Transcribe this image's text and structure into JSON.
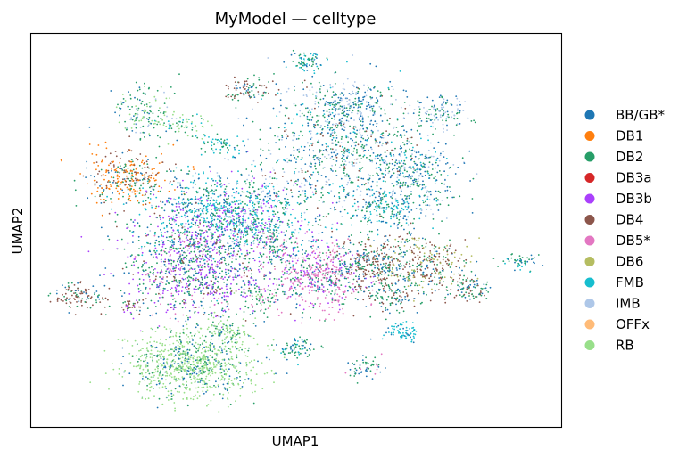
{
  "chart_data": {
    "type": "scatter",
    "title": "MyModel — celltype",
    "xlabel": "UMAP1",
    "ylabel": "UMAP2",
    "xlim": [
      0,
      100
    ],
    "ylim": [
      0,
      100
    ],
    "grid": false,
    "ticks": false,
    "legend_position": "right, outside plot",
    "series": [
      {
        "name": "BB/GB*",
        "color": "#1f77b4"
      },
      {
        "name": "DB1",
        "color": "#ff7f0e"
      },
      {
        "name": "DB2",
        "color": "#279e68"
      },
      {
        "name": "DB3a",
        "color": "#d62728"
      },
      {
        "name": "DB3b",
        "color": "#aa40fc"
      },
      {
        "name": "DB4",
        "color": "#8c564b"
      },
      {
        "name": "DB5*",
        "color": "#e377c2"
      },
      {
        "name": "DB6",
        "color": "#b5bd61"
      },
      {
        "name": "FMB",
        "color": "#17becf"
      },
      {
        "name": "IMB",
        "color": "#aec7e8"
      },
      {
        "name": "OFFx",
        "color": "#ffbb78"
      },
      {
        "name": "RB",
        "color": "#98df8a"
      }
    ],
    "clusters": [
      {
        "x": 52,
        "y": 93,
        "sx": 1.6,
        "sy": 1.4,
        "n": 70,
        "mix": {
          "DB2": 2,
          "BB/GB*": 1,
          "FMB": 1
        }
      },
      {
        "x": 41,
        "y": 86,
        "sx": 2.2,
        "sy": 1.6,
        "n": 90,
        "mix": {
          "DB4": 3,
          "DB2": 2,
          "BB/GB*": 1
        }
      },
      {
        "x": 21,
        "y": 80,
        "sx": 2.8,
        "sy": 3.5,
        "n": 160,
        "mix": {
          "DB2": 2,
          "RB": 2,
          "BB/GB*": 1,
          "IMB": 1
        }
      },
      {
        "x": 29,
        "y": 77,
        "sx": 2.5,
        "sy": 1.5,
        "n": 60,
        "mix": {
          "DB2": 2,
          "RB": 2,
          "FMB": 1
        }
      },
      {
        "x": 18,
        "y": 63,
        "sx": 4.0,
        "sy": 3.5,
        "n": 320,
        "mix": {
          "DB1": 5,
          "DB4": 3,
          "DB2": 2,
          "BB/GB*": 1
        }
      },
      {
        "x": 36,
        "y": 72,
        "sx": 2.0,
        "sy": 1.5,
        "n": 50,
        "mix": {
          "DB2": 2,
          "FMB": 2,
          "BB/GB*": 1
        }
      },
      {
        "x": 37,
        "y": 54,
        "sx": 8.0,
        "sy": 5.5,
        "n": 1200,
        "mix": {
          "FMB": 4,
          "DB2": 3,
          "BB/GB*": 2,
          "DB3b": 2,
          "IMB": 1
        }
      },
      {
        "x": 31,
        "y": 40,
        "sx": 7.0,
        "sy": 6.0,
        "n": 1000,
        "mix": {
          "DB3b": 4,
          "DB2": 3,
          "BB/GB*": 2,
          "DB4": 1,
          "DB5*": 1
        }
      },
      {
        "x": 59,
        "y": 70,
        "sx": 8.0,
        "sy": 8.0,
        "n": 850,
        "mix": {
          "BB/GB*": 3,
          "DB2": 3,
          "FMB": 1,
          "IMB": 2,
          "DB4": 1
        }
      },
      {
        "x": 60,
        "y": 82,
        "sx": 4.0,
        "sy": 3.0,
        "n": 250,
        "mix": {
          "BB/GB*": 2,
          "DB2": 2,
          "IMB": 2
        }
      },
      {
        "x": 72,
        "y": 63,
        "sx": 4.0,
        "sy": 6.0,
        "n": 350,
        "mix": {
          "BB/GB*": 3,
          "DB2": 2,
          "FMB": 1,
          "IMB": 1
        }
      },
      {
        "x": 67,
        "y": 55,
        "sx": 3.0,
        "sy": 2.0,
        "n": 120,
        "mix": {
          "FMB": 2,
          "DB2": 2,
          "BB/GB*": 1
        }
      },
      {
        "x": 54,
        "y": 38,
        "sx": 4.5,
        "sy": 4.5,
        "n": 550,
        "mix": {
          "DB5*": 5,
          "DB3b": 2,
          "DB2": 2,
          "BB/GB*": 1
        }
      },
      {
        "x": 64,
        "y": 41,
        "sx": 3.5,
        "sy": 3.5,
        "n": 300,
        "mix": {
          "DB4": 3,
          "DB2": 2,
          "BB/GB*": 2
        }
      },
      {
        "x": 74,
        "y": 41,
        "sx": 4.5,
        "sy": 3.5,
        "n": 350,
        "mix": {
          "DB4": 3,
          "DB6": 2,
          "DB2": 2,
          "BB/GB*": 1
        }
      },
      {
        "x": 68,
        "y": 33,
        "sx": 2.5,
        "sy": 2.0,
        "n": 100,
        "mix": {
          "DB2": 2,
          "DB4": 1,
          "BB/GB*": 1
        }
      },
      {
        "x": 70,
        "y": 24,
        "sx": 1.8,
        "sy": 1.2,
        "n": 70,
        "mix": {
          "FMB": 4,
          "BB/GB*": 1
        }
      },
      {
        "x": 50,
        "y": 20,
        "sx": 1.8,
        "sy": 1.4,
        "n": 70,
        "mix": {
          "DB2": 2,
          "BB/GB*": 1,
          "FMB": 1
        }
      },
      {
        "x": 63,
        "y": 15,
        "sx": 1.8,
        "sy": 1.4,
        "n": 60,
        "mix": {
          "DB2": 2,
          "DB5*": 1,
          "BB/GB*": 1
        }
      },
      {
        "x": 9,
        "y": 33,
        "sx": 2.4,
        "sy": 1.6,
        "n": 110,
        "mix": {
          "DB4": 3,
          "DB2": 2,
          "BB/GB*": 1
        }
      },
      {
        "x": 19,
        "y": 31,
        "sx": 1.2,
        "sy": 1.2,
        "n": 40,
        "mix": {
          "DB4": 2,
          "DB2": 1,
          "DB3b": 1
        }
      },
      {
        "x": 30,
        "y": 16,
        "sx": 6.0,
        "sy": 4.5,
        "n": 900,
        "mix": {
          "RB": 8,
          "DB2": 2,
          "BB/GB*": 2
        }
      },
      {
        "x": 37,
        "y": 24,
        "sx": 2.0,
        "sy": 2.0,
        "n": 100,
        "mix": {
          "RB": 3,
          "DB2": 1,
          "BB/GB*": 1
        }
      },
      {
        "x": 83,
        "y": 35,
        "sx": 2.0,
        "sy": 1.5,
        "n": 80,
        "mix": {
          "DB4": 2,
          "DB2": 2,
          "BB/GB*": 1
        }
      },
      {
        "x": 92,
        "y": 42,
        "sx": 1.8,
        "sy": 1.0,
        "n": 50,
        "mix": {
          "DB2": 2,
          "BB/GB*": 1,
          "FMB": 1
        }
      },
      {
        "x": 77,
        "y": 80,
        "sx": 2.5,
        "sy": 2.0,
        "n": 120,
        "mix": {
          "BB/GB*": 2,
          "DB2": 2,
          "IMB": 2
        }
      },
      {
        "x": 46,
        "y": 47,
        "sx": 1.5,
        "sy": 3.0,
        "n": 80,
        "mix": {
          "DB2": 2,
          "DB5*": 1,
          "BB/GB*": 1
        }
      },
      {
        "x": 43,
        "y": 32,
        "sx": 1.5,
        "sy": 2.0,
        "n": 60,
        "mix": {
          "DB2": 2,
          "DB5*": 1,
          "RB": 1
        }
      }
    ]
  }
}
